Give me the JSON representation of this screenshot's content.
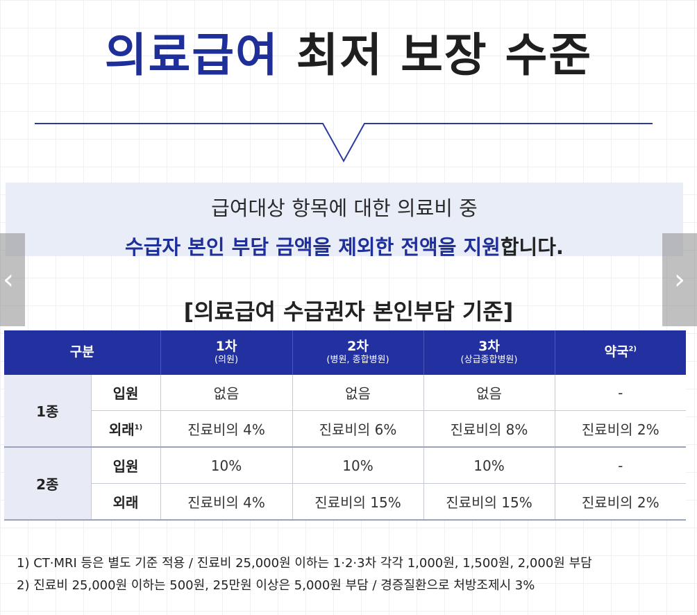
{
  "title": {
    "accent": "의료급여",
    "rest": "최저 보장 수준"
  },
  "banner": {
    "line1": "급여대상 항목에 대한 의료비 중",
    "line2_highlight": "수급자 본인 부담 금액을 제외한 전액을 지원",
    "line2_rest": "합니다."
  },
  "table_title": "[의료급여 수급권자 본인부담 기준]",
  "table": {
    "header": {
      "category": "구분",
      "col1": "1차",
      "col1_sub": "(의원)",
      "col2": "2차",
      "col2_sub": "(병원, 종합병원)",
      "col3": "3차",
      "col3_sub": "(상급종합병원)",
      "col4": "약국",
      "col4_sup": "2)"
    },
    "group1": {
      "label": "1종",
      "row1": {
        "label": "입원",
        "c1": "없음",
        "c2": "없음",
        "c3": "없음",
        "c4": "-"
      },
      "row2": {
        "label": "외래",
        "sup": "1)",
        "c1": "진료비의 4%",
        "c2": "진료비의 6%",
        "c3": "진료비의 8%",
        "c4": "진료비의 2%"
      }
    },
    "group2": {
      "label": "2종",
      "row1": {
        "label": "입원",
        "c1": "10%",
        "c2": "10%",
        "c3": "10%",
        "c4": "-"
      },
      "row2": {
        "label": "외래",
        "c1": "진료비의 4%",
        "c2": "진료비의 15%",
        "c3": "진료비의 15%",
        "c4": "진료비의 2%"
      }
    }
  },
  "footnotes": [
    "1) CT·MRI 등은 별도 기준 적용 / 진료비 25,000원 이하는 1·2·3차 각각 1,000원, 1,500원, 2,000원 부담",
    "2) 진료비 25,000원 이하는 500원, 25만원 이상은 5,000원 부담 / 경증질환으로 처방조제시 3%"
  ],
  "colors": {
    "accent": "#1f2f9a",
    "header_bg": "#22319f",
    "banner_bg": "#e9edf8"
  },
  "icons": {
    "prev": "chevron-left-icon",
    "next": "chevron-right-icon"
  }
}
